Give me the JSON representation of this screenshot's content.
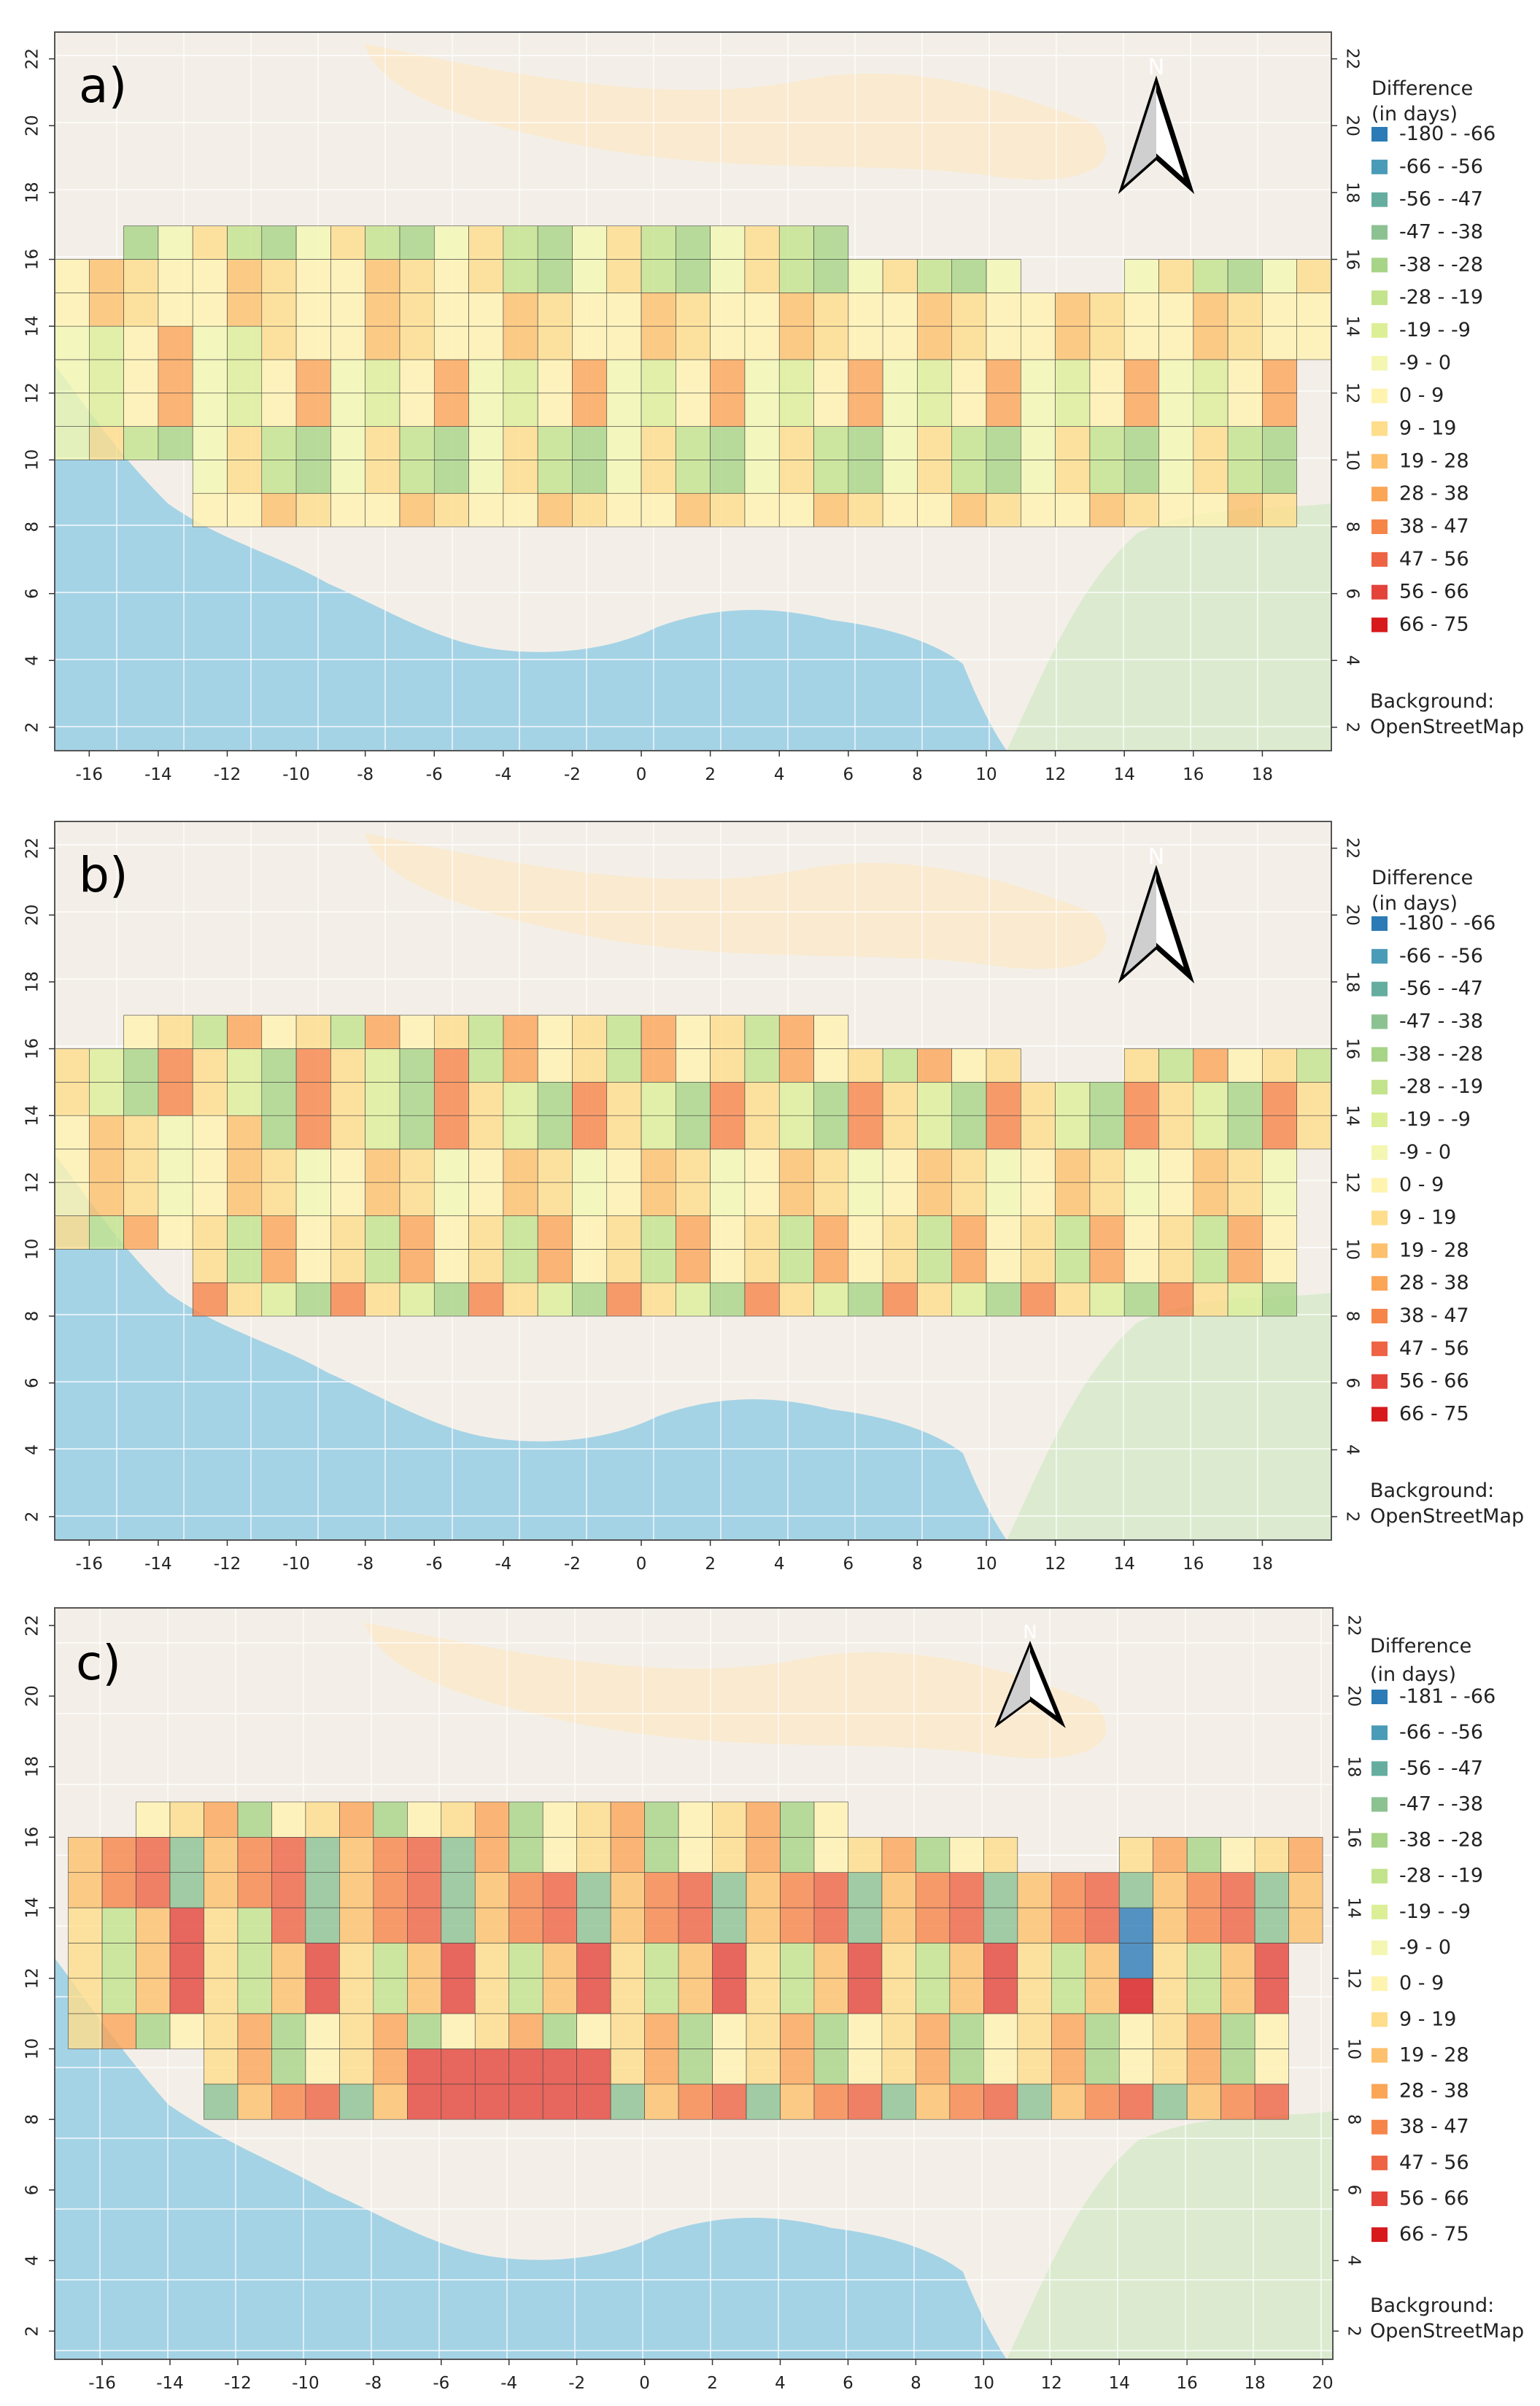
{
  "figure": {
    "background_credit_label": "Background:",
    "background_credit_source": "OpenStreetMap",
    "north_label": "N",
    "legend_title_line1": "Difference",
    "legend_title_line2": "(in days)",
    "legend_colors": [
      "#2c7bb6",
      "#4a9bb8",
      "#65ae9f",
      "#8cc292",
      "#a7d486",
      "#c3e38c",
      "#dcef97",
      "#f3f7b1",
      "#fff3b0",
      "#fedd8b",
      "#fdc06c",
      "#fba557",
      "#f6854a",
      "#ee6343",
      "#e4433a",
      "#d7191c"
    ]
  },
  "panels": [
    {
      "id": "a",
      "label": "a)",
      "x_ticks": [
        "-16",
        "-14",
        "-12",
        "-10",
        "-8",
        "-6",
        "-4",
        "-2",
        "0",
        "2",
        "4",
        "6",
        "8",
        "10",
        "12",
        "14",
        "16",
        "18"
      ],
      "y_ticks": [
        "2",
        "4",
        "6",
        "8",
        "10",
        "12",
        "14",
        "16",
        "18",
        "20",
        "22"
      ],
      "legend_items": [
        "-180 - -66",
        "-66 - -56",
        "-56 - -47",
        "-47 - -38",
        "-38 - -28",
        "-28 - -19",
        "-19 - -9",
        "-9 - 0",
        "0 - 9",
        "9 - 19",
        "19 - 28",
        "28 - 38",
        "38 - 47",
        "47 - 56",
        "56 - 66",
        "66 - 75"
      ]
    },
    {
      "id": "b",
      "label": "b)",
      "x_ticks": [
        "-16",
        "-14",
        "-12",
        "-10",
        "-8",
        "-6",
        "-4",
        "-2",
        "0",
        "2",
        "4",
        "6",
        "8",
        "10",
        "12",
        "14",
        "16",
        "18"
      ],
      "y_ticks": [
        "2",
        "4",
        "6",
        "8",
        "10",
        "12",
        "14",
        "16",
        "18",
        "20",
        "22"
      ],
      "legend_items": [
        "-180 - -66",
        "-66 - -56",
        "-56 - -47",
        "-47 - -38",
        "-38 - -28",
        "-28 - -19",
        "-19 - -9",
        "-9 - 0",
        "0 - 9",
        "9 - 19",
        "19 - 28",
        "28 - 38",
        "38 - 47",
        "47 - 56",
        "56 - 66",
        "66 - 75"
      ]
    },
    {
      "id": "c",
      "label": "c)",
      "x_ticks": [
        "-16",
        "-14",
        "-12",
        "-10",
        "-8",
        "-6",
        "-4",
        "-2",
        "0",
        "2",
        "4",
        "6",
        "8",
        "10",
        "12",
        "14",
        "16",
        "18",
        "20"
      ],
      "y_ticks": [
        "2",
        "4",
        "6",
        "8",
        "10",
        "12",
        "14",
        "16",
        "18",
        "20",
        "22"
      ],
      "legend_items": [
        "-181 - -66",
        "-66 - -56",
        "-56 - -47",
        "-47 - -38",
        "-38 - -28",
        "-28 - -19",
        "-19 - -9",
        "-9 - 0",
        "0 - 9",
        "9 - 19",
        "19 - 28",
        "28 - 38",
        "38 - 47",
        "47 - 56",
        "56 - 66",
        "66 - 75"
      ]
    }
  ]
}
